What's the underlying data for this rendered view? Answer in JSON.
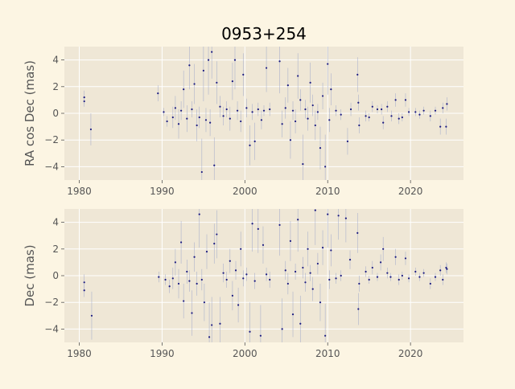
{
  "title": "0953+254",
  "colors": {
    "figure_background": "#fcf5e3",
    "axes_background": "#efe7d6",
    "grid": "#ffffff",
    "points": "#1a1a80",
    "error_bars": "#9ba5c9",
    "text": "#555555"
  },
  "chart_data": [
    {
      "type": "scatter",
      "ylabel": "RA cos Dec (mas)",
      "xlabel": "",
      "xlim": [
        1978.2,
        2026.4
      ],
      "ylim": [
        -5,
        5
      ],
      "xticks": [
        1980,
        1990,
        2000,
        2010,
        2020
      ],
      "yticks": [
        -4,
        -2,
        0,
        2,
        4
      ],
      "grid": true,
      "points": [
        {
          "x": 1980.6,
          "y": 1.2,
          "err": 0.5
        },
        {
          "x": 1980.6,
          "y": 0.9,
          "err": 0.4
        },
        {
          "x": 1981.4,
          "y": -1.2,
          "err": 1.2
        },
        {
          "x": 1989.5,
          "y": 1.5,
          "err": 0.6
        },
        {
          "x": 1990.2,
          "y": 0.1,
          "err": 0.3
        },
        {
          "x": 1990.6,
          "y": -0.6,
          "err": 0.4
        },
        {
          "x": 1991.3,
          "y": -0.3,
          "err": 0.8
        },
        {
          "x": 1991.6,
          "y": 0.4,
          "err": 0.9
        },
        {
          "x": 1992.0,
          "y": -0.8,
          "err": 1.1
        },
        {
          "x": 1992.3,
          "y": 0.2,
          "err": 0.7
        },
        {
          "x": 1992.6,
          "y": 1.8,
          "err": 1.4
        },
        {
          "x": 1993.0,
          "y": -0.4,
          "err": 1.0
        },
        {
          "x": 1993.3,
          "y": 3.6,
          "err": 1.8
        },
        {
          "x": 1993.6,
          "y": 0.3,
          "err": 0.6
        },
        {
          "x": 1993.9,
          "y": 2.2,
          "err": 1.5
        },
        {
          "x": 1994.2,
          "y": -0.9,
          "err": 1.2
        },
        {
          "x": 1994.5,
          "y": -0.3,
          "err": 0.8
        },
        {
          "x": 1994.8,
          "y": -4.4,
          "err": 2.5
        },
        {
          "x": 1995.0,
          "y": 3.2,
          "err": 2.3
        },
        {
          "x": 1995.3,
          "y": -0.5,
          "err": 0.9
        },
        {
          "x": 1995.6,
          "y": 4.0,
          "err": 2.6
        },
        {
          "x": 1995.8,
          "y": -0.7,
          "err": 1.0
        },
        {
          "x": 1996.0,
          "y": 4.6,
          "err": 2.0
        },
        {
          "x": 1996.3,
          "y": -3.9,
          "err": 2.1
        },
        {
          "x": 1996.6,
          "y": 2.3,
          "err": 1.6
        },
        {
          "x": 1997.0,
          "y": 0.5,
          "err": 0.8
        },
        {
          "x": 1997.4,
          "y": -0.2,
          "err": 0.7
        },
        {
          "x": 1997.8,
          "y": 0.3,
          "err": 0.6
        },
        {
          "x": 1998.2,
          "y": -0.4,
          "err": 0.9
        },
        {
          "x": 1998.5,
          "y": 2.4,
          "err": 1.4
        },
        {
          "x": 1998.8,
          "y": 4.0,
          "err": 2.2
        },
        {
          "x": 1999.1,
          "y": 0.2,
          "err": 0.7
        },
        {
          "x": 1999.5,
          "y": -0.6,
          "err": 0.8
        },
        {
          "x": 1999.8,
          "y": 2.9,
          "err": 1.6
        },
        {
          "x": 2000.2,
          "y": 0.4,
          "err": 0.7
        },
        {
          "x": 2000.6,
          "y": -2.4,
          "err": 1.5
        },
        {
          "x": 2000.9,
          "y": 0.1,
          "err": 0.6
        },
        {
          "x": 2001.2,
          "y": -2.1,
          "err": 1.4
        },
        {
          "x": 2001.6,
          "y": 0.3,
          "err": 0.5
        },
        {
          "x": 2002.0,
          "y": -0.5,
          "err": 0.7
        },
        {
          "x": 2002.3,
          "y": 0.2,
          "err": 0.4
        },
        {
          "x": 2002.6,
          "y": 3.4,
          "err": 1.8
        },
        {
          "x": 2003.0,
          "y": 0.3,
          "err": 0.5
        },
        {
          "x": 2004.2,
          "y": 3.9,
          "err": 2.4
        },
        {
          "x": 2004.5,
          "y": -0.8,
          "err": 1.0
        },
        {
          "x": 2004.9,
          "y": 0.4,
          "err": 0.8
        },
        {
          "x": 2005.2,
          "y": 2.1,
          "err": 1.3
        },
        {
          "x": 2005.5,
          "y": -2.0,
          "err": 1.4
        },
        {
          "x": 2005.8,
          "y": 0.2,
          "err": 0.7
        },
        {
          "x": 2006.1,
          "y": -0.6,
          "err": 0.9
        },
        {
          "x": 2006.4,
          "y": 2.8,
          "err": 1.7
        },
        {
          "x": 2006.7,
          "y": 1.0,
          "err": 0.8
        },
        {
          "x": 2007.0,
          "y": -3.8,
          "err": 2.2
        },
        {
          "x": 2007.3,
          "y": 0.3,
          "err": 0.7
        },
        {
          "x": 2007.6,
          "y": -0.4,
          "err": 0.9
        },
        {
          "x": 2007.9,
          "y": 2.3,
          "err": 1.5
        },
        {
          "x": 2008.2,
          "y": 0.6,
          "err": 0.8
        },
        {
          "x": 2008.5,
          "y": -0.9,
          "err": 1.1
        },
        {
          "x": 2008.8,
          "y": 0.1,
          "err": 0.6
        },
        {
          "x": 2009.1,
          "y": -2.6,
          "err": 1.6
        },
        {
          "x": 2009.4,
          "y": 1.3,
          "err": 1.0
        },
        {
          "x": 2009.7,
          "y": -4.0,
          "err": 2.4
        },
        {
          "x": 2010.0,
          "y": 3.7,
          "err": 2.3
        },
        {
          "x": 2010.2,
          "y": -0.5,
          "err": 0.9
        },
        {
          "x": 2010.4,
          "y": 1.8,
          "err": 1.2
        },
        {
          "x": 2011.0,
          "y": 0.2,
          "err": 0.4
        },
        {
          "x": 2011.6,
          "y": -0.1,
          "err": 0.4
        },
        {
          "x": 2012.4,
          "y": -2.1,
          "err": 1.0
        },
        {
          "x": 2012.8,
          "y": 0.3,
          "err": 0.5
        },
        {
          "x": 2013.6,
          "y": 2.9,
          "err": 1.3
        },
        {
          "x": 2013.7,
          "y": 0.8,
          "err": 0.6
        },
        {
          "x": 2013.8,
          "y": -0.9,
          "err": 0.6
        },
        {
          "x": 2014.6,
          "y": -0.2,
          "err": 0.4
        },
        {
          "x": 2015.0,
          "y": -0.3,
          "err": 0.3
        },
        {
          "x": 2015.4,
          "y": 0.5,
          "err": 0.4
        },
        {
          "x": 2016.0,
          "y": 0.3,
          "err": 0.3
        },
        {
          "x": 2016.5,
          "y": 0.3,
          "err": 0.4
        },
        {
          "x": 2016.7,
          "y": -0.7,
          "err": 0.5
        },
        {
          "x": 2017.2,
          "y": 0.5,
          "err": 0.4
        },
        {
          "x": 2017.7,
          "y": -0.2,
          "err": 0.4
        },
        {
          "x": 2018.2,
          "y": 1.0,
          "err": 0.5
        },
        {
          "x": 2018.6,
          "y": -0.4,
          "err": 0.4
        },
        {
          "x": 2019.0,
          "y": -0.3,
          "err": 0.3
        },
        {
          "x": 2019.4,
          "y": 1.0,
          "err": 0.5
        },
        {
          "x": 2019.8,
          "y": 0.1,
          "err": 0.3
        },
        {
          "x": 2020.6,
          "y": 0.1,
          "err": 0.3
        },
        {
          "x": 2021.1,
          "y": -0.1,
          "err": 0.3
        },
        {
          "x": 2021.6,
          "y": 0.2,
          "err": 0.3
        },
        {
          "x": 2022.4,
          "y": -0.2,
          "err": 0.4
        },
        {
          "x": 2023.0,
          "y": 0.2,
          "err": 0.3
        },
        {
          "x": 2023.6,
          "y": -1.0,
          "err": 0.6
        },
        {
          "x": 2023.9,
          "y": 0.4,
          "err": 0.4
        },
        {
          "x": 2024.3,
          "y": -1.0,
          "err": 0.6
        },
        {
          "x": 2024.4,
          "y": 0.7,
          "err": 0.5
        }
      ]
    },
    {
      "type": "scatter",
      "ylabel": "Dec (mas)",
      "xlabel": "",
      "xlim": [
        1978.2,
        2026.4
      ],
      "ylim": [
        -5,
        5
      ],
      "xticks": [
        1980,
        1990,
        2000,
        2010,
        2020
      ],
      "yticks": [
        -4,
        -2,
        0,
        2,
        4
      ],
      "grid": true,
      "points": [
        {
          "x": 1980.6,
          "y": -0.5,
          "err": 0.6
        },
        {
          "x": 1980.6,
          "y": -1.1,
          "err": 0.5
        },
        {
          "x": 1981.5,
          "y": -3.0,
          "err": 1.8
        },
        {
          "x": 1989.6,
          "y": -0.1,
          "err": 0.4
        },
        {
          "x": 1990.4,
          "y": -0.3,
          "err": 0.4
        },
        {
          "x": 1990.9,
          "y": -0.8,
          "err": 0.5
        },
        {
          "x": 1991.3,
          "y": -0.2,
          "err": 0.8
        },
        {
          "x": 1991.6,
          "y": 1.0,
          "err": 1.0
        },
        {
          "x": 1992.0,
          "y": -0.6,
          "err": 1.1
        },
        {
          "x": 1992.3,
          "y": 2.5,
          "err": 1.6
        },
        {
          "x": 1992.6,
          "y": -1.9,
          "err": 1.3
        },
        {
          "x": 1993.0,
          "y": 0.3,
          "err": 0.9
        },
        {
          "x": 1993.3,
          "y": -0.4,
          "err": 0.8
        },
        {
          "x": 1993.6,
          "y": -2.8,
          "err": 1.7
        },
        {
          "x": 1993.9,
          "y": 1.4,
          "err": 1.1
        },
        {
          "x": 1994.2,
          "y": -0.6,
          "err": 0.9
        },
        {
          "x": 1994.5,
          "y": 4.6,
          "err": 2.5
        },
        {
          "x": 1994.8,
          "y": -0.3,
          "err": 0.8
        },
        {
          "x": 1995.1,
          "y": -2.0,
          "err": 1.4
        },
        {
          "x": 1995.4,
          "y": 1.8,
          "err": 1.3
        },
        {
          "x": 1995.7,
          "y": -4.6,
          "err": 2.6
        },
        {
          "x": 1996.0,
          "y": -3.7,
          "err": 2.1
        },
        {
          "x": 1996.3,
          "y": 2.4,
          "err": 1.5
        },
        {
          "x": 1996.6,
          "y": 3.1,
          "err": 1.8
        },
        {
          "x": 1997.0,
          "y": -3.6,
          "err": 2.0
        },
        {
          "x": 1997.4,
          "y": 0.2,
          "err": 0.7
        },
        {
          "x": 1997.8,
          "y": -0.3,
          "err": 0.6
        },
        {
          "x": 1998.2,
          "y": 1.1,
          "err": 0.9
        },
        {
          "x": 1998.5,
          "y": -1.5,
          "err": 1.1
        },
        {
          "x": 1998.9,
          "y": 0.4,
          "err": 0.7
        },
        {
          "x": 1999.2,
          "y": -2.2,
          "err": 1.3
        },
        {
          "x": 1999.5,
          "y": 2.0,
          "err": 1.3
        },
        {
          "x": 1999.8,
          "y": -0.2,
          "err": 0.6
        },
        {
          "x": 2000.2,
          "y": 0.1,
          "err": 0.5
        },
        {
          "x": 2000.6,
          "y": -4.2,
          "err": 2.2
        },
        {
          "x": 2000.9,
          "y": 3.9,
          "err": 2.1
        },
        {
          "x": 2001.2,
          "y": -0.4,
          "err": 0.6
        },
        {
          "x": 2001.6,
          "y": 3.5,
          "err": 1.8
        },
        {
          "x": 2001.9,
          "y": -4.5,
          "err": 2.3
        },
        {
          "x": 2002.2,
          "y": 2.3,
          "err": 1.4
        },
        {
          "x": 2002.6,
          "y": 0.1,
          "err": 0.5
        },
        {
          "x": 2003.0,
          "y": -0.3,
          "err": 0.6
        },
        {
          "x": 2004.2,
          "y": 3.8,
          "err": 2.3
        },
        {
          "x": 2004.5,
          "y": -4.0,
          "err": 2.3
        },
        {
          "x": 2004.9,
          "y": 0.4,
          "err": 0.7
        },
        {
          "x": 2005.2,
          "y": -0.6,
          "err": 0.8
        },
        {
          "x": 2005.5,
          "y": 2.6,
          "err": 1.5
        },
        {
          "x": 2005.8,
          "y": -2.9,
          "err": 1.7
        },
        {
          "x": 2006.1,
          "y": 0.3,
          "err": 0.6
        },
        {
          "x": 2006.4,
          "y": 4.2,
          "err": 2.4
        },
        {
          "x": 2006.7,
          "y": -3.6,
          "err": 2.1
        },
        {
          "x": 2007.0,
          "y": 0.6,
          "err": 0.8
        },
        {
          "x": 2007.3,
          "y": -0.5,
          "err": 0.7
        },
        {
          "x": 2007.6,
          "y": 2.0,
          "err": 1.3
        },
        {
          "x": 2007.9,
          "y": 0.2,
          "err": 0.6
        },
        {
          "x": 2008.2,
          "y": -1.0,
          "err": 0.9
        },
        {
          "x": 2008.5,
          "y": 4.9,
          "err": 2.6
        },
        {
          "x": 2008.8,
          "y": 0.9,
          "err": 0.8
        },
        {
          "x": 2009.1,
          "y": -2.0,
          "err": 1.4
        },
        {
          "x": 2009.4,
          "y": 2.1,
          "err": 1.3
        },
        {
          "x": 2009.7,
          "y": -4.5,
          "err": 2.4
        },
        {
          "x": 2010.0,
          "y": 4.6,
          "err": 2.5
        },
        {
          "x": 2010.2,
          "y": -0.3,
          "err": 0.7
        },
        {
          "x": 2010.4,
          "y": 1.9,
          "err": 1.2
        },
        {
          "x": 2011.0,
          "y": -0.2,
          "err": 0.4
        },
        {
          "x": 2011.3,
          "y": 4.5,
          "err": 1.8
        },
        {
          "x": 2011.6,
          "y": 0.0,
          "err": 0.4
        },
        {
          "x": 2012.2,
          "y": 4.3,
          "err": 1.8
        },
        {
          "x": 2012.7,
          "y": 1.2,
          "err": 0.7
        },
        {
          "x": 2013.6,
          "y": 3.2,
          "err": 1.5
        },
        {
          "x": 2013.7,
          "y": -2.5,
          "err": 1.2
        },
        {
          "x": 2013.8,
          "y": -0.6,
          "err": 0.6
        },
        {
          "x": 2014.6,
          "y": 0.3,
          "err": 0.4
        },
        {
          "x": 2015.0,
          "y": -0.3,
          "err": 0.3
        },
        {
          "x": 2015.4,
          "y": 0.6,
          "err": 0.5
        },
        {
          "x": 2016.0,
          "y": -0.1,
          "err": 0.3
        },
        {
          "x": 2016.4,
          "y": 1.0,
          "err": 0.6
        },
        {
          "x": 2016.7,
          "y": 2.0,
          "err": 0.9
        },
        {
          "x": 2017.2,
          "y": 0.2,
          "err": 0.4
        },
        {
          "x": 2017.6,
          "y": -0.1,
          "err": 0.3
        },
        {
          "x": 2018.2,
          "y": 1.4,
          "err": 0.6
        },
        {
          "x": 2018.6,
          "y": -0.3,
          "err": 0.4
        },
        {
          "x": 2019.0,
          "y": 0.0,
          "err": 0.3
        },
        {
          "x": 2019.4,
          "y": 1.3,
          "err": 0.5
        },
        {
          "x": 2019.8,
          "y": -0.2,
          "err": 0.3
        },
        {
          "x": 2020.6,
          "y": 0.3,
          "err": 0.3
        },
        {
          "x": 2021.1,
          "y": -0.1,
          "err": 0.3
        },
        {
          "x": 2021.6,
          "y": 0.2,
          "err": 0.3
        },
        {
          "x": 2022.4,
          "y": -0.6,
          "err": 0.4
        },
        {
          "x": 2023.0,
          "y": -0.1,
          "err": 0.3
        },
        {
          "x": 2023.6,
          "y": 0.4,
          "err": 0.4
        },
        {
          "x": 2023.9,
          "y": -0.3,
          "err": 0.4
        },
        {
          "x": 2024.3,
          "y": 0.6,
          "err": 0.4
        },
        {
          "x": 2024.4,
          "y": 0.5,
          "err": 0.4
        }
      ]
    }
  ]
}
